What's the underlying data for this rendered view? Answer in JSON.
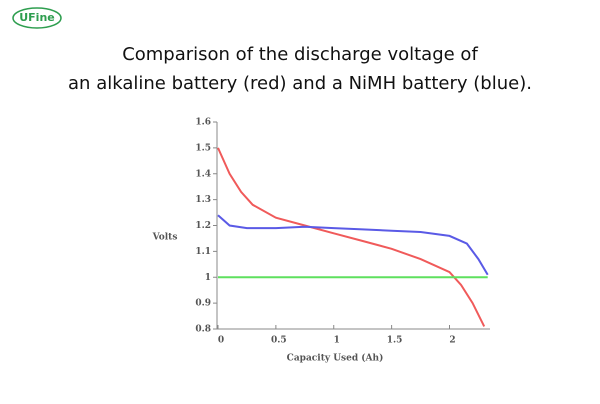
{
  "logo": "UFine",
  "chart_data": {
    "type": "line",
    "title_lines": [
      "Comparison of the discharge voltage of",
      "an alkaline battery (red) and a NiMH battery (blue)."
    ],
    "y_label": "Volts",
    "x_label": "Capacity Used (Ah)",
    "xlim": [
      0,
      2.35
    ],
    "ylim": [
      0.8,
      1.6
    ],
    "xticks": [
      0,
      0.5,
      1,
      1.5,
      2
    ],
    "yticks": [
      0.8,
      0.9,
      1,
      1.1,
      1.2,
      1.3,
      1.4,
      1.5,
      1.6
    ],
    "series": [
      {
        "color": "#f05a5a",
        "x": [
          0,
          0.1,
          0.2,
          0.3,
          0.5,
          0.75,
          1.0,
          1.25,
          1.5,
          1.75,
          2.0,
          2.1,
          2.2,
          2.3
        ],
        "values": [
          1.5,
          1.4,
          1.33,
          1.28,
          1.23,
          1.2,
          1.17,
          1.14,
          1.11,
          1.07,
          1.02,
          0.97,
          0.9,
          0.81
        ]
      },
      {
        "color": "#5a5ae6",
        "x": [
          0,
          0.1,
          0.25,
          0.5,
          0.75,
          1.0,
          1.25,
          1.5,
          1.75,
          2.0,
          2.15,
          2.25,
          2.33
        ],
        "values": [
          1.24,
          1.2,
          1.19,
          1.19,
          1.195,
          1.19,
          1.185,
          1.18,
          1.175,
          1.16,
          1.13,
          1.07,
          1.01
        ]
      },
      {
        "color": "#5ee05e",
        "x": [
          0,
          2.33
        ],
        "values": [
          1,
          1
        ]
      }
    ]
  }
}
